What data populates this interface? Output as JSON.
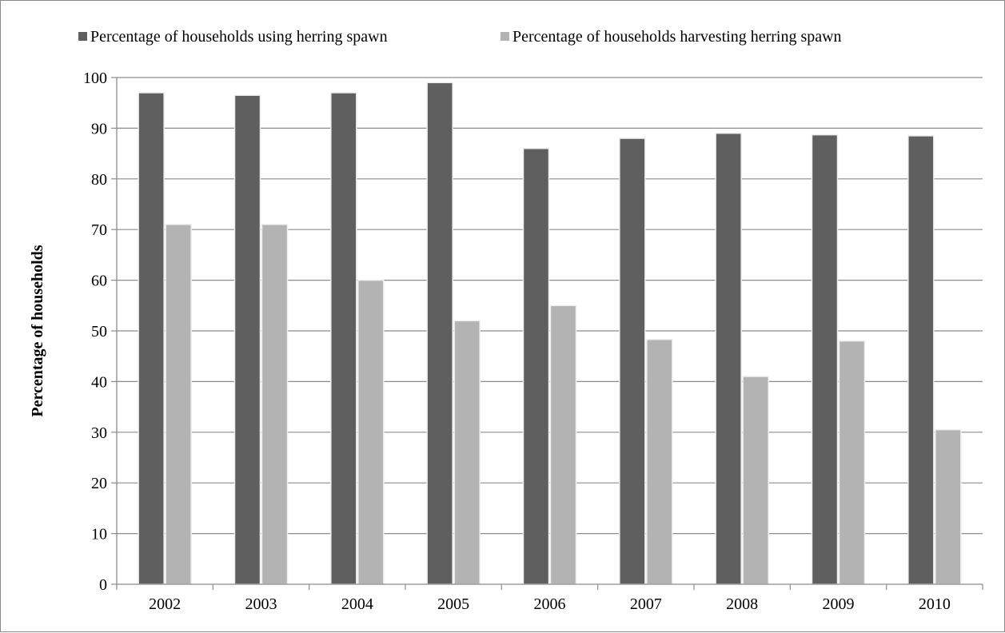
{
  "chart_data": {
    "type": "bar",
    "title": "",
    "xlabel": "",
    "ylabel": "Percentage of households",
    "categories": [
      "2002",
      "2003",
      "2004",
      "2005",
      "2006",
      "2007",
      "2008",
      "2009",
      "2010"
    ],
    "series": [
      {
        "name": "Percentage of households using herring spawn",
        "color": "#5f5f5f",
        "values": [
          97,
          96.5,
          97,
          99,
          86,
          88,
          89,
          88.7,
          88.5
        ]
      },
      {
        "name": "Percentage of households harvesting herring spawn",
        "color": "#b3b3b3",
        "values": [
          71,
          71,
          60,
          52,
          55,
          48.3,
          41,
          48,
          30.5
        ]
      }
    ],
    "ylim": [
      0,
      100
    ],
    "yticks": [
      0,
      10,
      20,
      30,
      40,
      50,
      60,
      70,
      80,
      90,
      100
    ],
    "grid": true,
    "legend_position": "top"
  }
}
